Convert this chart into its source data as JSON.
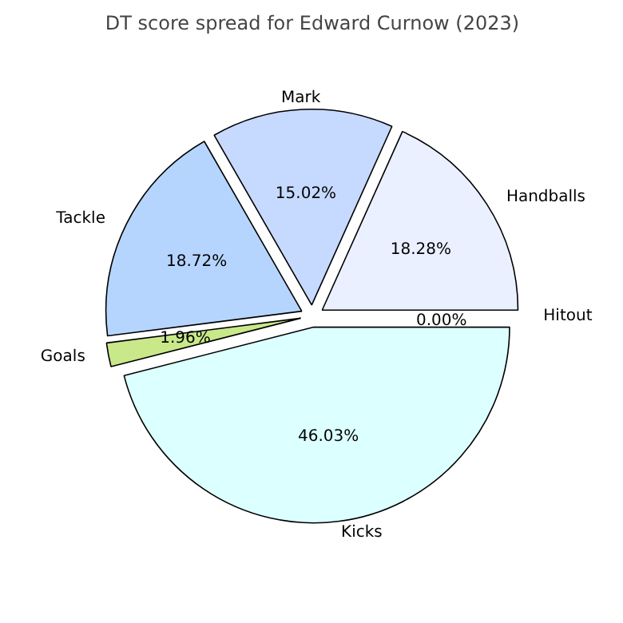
{
  "chart_data": {
    "type": "pie",
    "title": "DT score spread for Edward Curnow (2023)",
    "categories": [
      "Hitout",
      "Handballs",
      "Mark",
      "Tackle",
      "Goals",
      "Kicks"
    ],
    "values": [
      0.0,
      18.28,
      15.02,
      18.72,
      1.96,
      46.03
    ],
    "value_labels": [
      "0.00%",
      "18.28%",
      "15.02%",
      "18.72%",
      "1.96%",
      "46.03%"
    ],
    "colors": [
      "#e0e0e0",
      "#eaf0ff",
      "#c6d9ff",
      "#b5d5ff",
      "#c8e88a",
      "#dcffff"
    ]
  }
}
